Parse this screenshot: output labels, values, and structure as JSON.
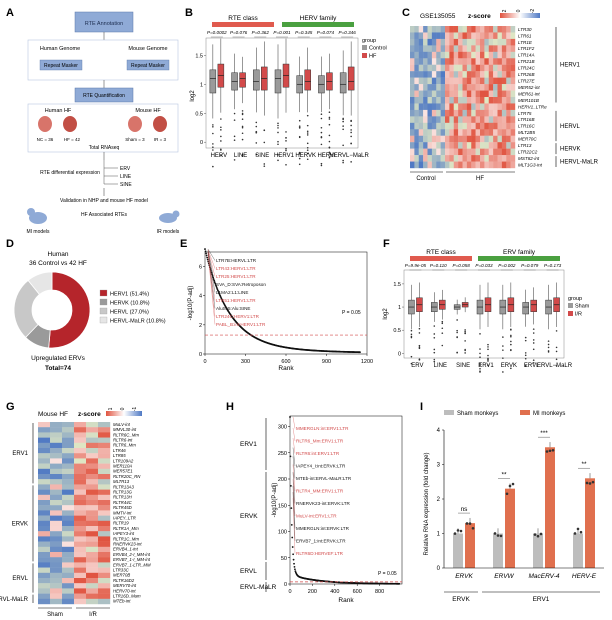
{
  "colors": {
    "control": "#9a9a9a",
    "hf": "#d24a4a",
    "classBar": "#e05a4e",
    "familyBar": "#4aa040",
    "heatRed": "#e0533f",
    "heatBlue": "#4f79c4",
    "flowBox": "#8faad6",
    "herv1": "#b5252b",
    "hervk": "#9a9a9a",
    "hervl": "#c8c8c8",
    "herlvmalr": "#e6e6e6",
    "sham": "#bdbdbd",
    "mi": "#e0704e"
  },
  "panels": {
    "A": {
      "letter": "A",
      "rte_annotation": "RTE Annotation",
      "human_genome": "Human Genome",
      "mouse_genome": "Mouse Genome",
      "repeat_masker": "Repeat Masker",
      "rte_quantification": "RTE Quantification",
      "human_hf": "Human HF",
      "mouse_hf": "Mouse HF",
      "nc": "NC = 36",
      "hf": "HF = 42",
      "sham": "Sham = 3",
      "ir": "IR = 3",
      "total_rnaseq": "Total RNAseq",
      "rte_de": "RTE differential expression",
      "erv": "ERV",
      "line": "LINE",
      "sine": "SINE",
      "validation": "Validation in NHP and mouse HF model",
      "hf_assoc": "HF Associated RTEs",
      "mi_models": "MI models",
      "ir_models": "IR models"
    },
    "B": {
      "letter": "B",
      "class_title": "RTE class",
      "family_title": "HERV family",
      "pvals": [
        "P=0.0002",
        "P=0.076",
        "P=0.362",
        "P=0.001",
        "P=0.345",
        "P=0.074",
        "P=0.346"
      ],
      "ylabel": "log2",
      "legend_title": "group",
      "legend": [
        "Control",
        "HF"
      ]
    },
    "C": {
      "letter": "C",
      "gse": "GSE135055",
      "zscore": "z-score",
      "ticks": [
        "2",
        "0",
        "-2"
      ],
      "genes": [
        "LTR30",
        "LTR61",
        "LTR1E",
        "LTR1F2",
        "LTR14A",
        "LTR21B",
        "LTR24C",
        "LTR26B",
        "LTR27E",
        "MER52-int",
        "MER61-int",
        "MER101B",
        "HERV1_LTRe",
        "LTR75",
        "LTR16B",
        "LTR16C",
        "MLT2B5",
        "MER70C",
        "LTR13",
        "LTR22C2",
        "MST82-int",
        "MLT1G3-int"
      ],
      "groups": [
        "HERV1",
        "HERVL",
        "HERVK",
        "HERVL-MaLR"
      ],
      "control": "Control",
      "hf": "HF"
    },
    "D": {
      "letter": "D",
      "title1": "Human",
      "title2": "36 Control vs 42 HF",
      "legend": [
        "HERV1 (51.4%)",
        "HERVK (10.8%)",
        "HERVL (27.0%)",
        "HERVL-MaLR (10.8%)"
      ],
      "caption": "Upregulated ERVs",
      "total": "Total=74"
    },
    "E": {
      "letter": "E",
      "ylabel": "-log10(P-adj)",
      "xlabel": "Rank",
      "xticks": [
        "0",
        "300",
        "600",
        "900",
        "1200"
      ],
      "yticks": [
        "0",
        "2",
        "4",
        "6"
      ],
      "pline": "P = 0.05",
      "labels": [
        "LTR7B:HERVL:LTR",
        "LTR43:HERV1:LTR",
        "LTR25:HERV1:LTR",
        "SVA_D:SVA:Retroposon",
        "L1MA2:L1:LINE",
        "LTR51:HERV1:LTR",
        "AluSc5:Alu:SINE",
        "LTR24C:HERV1:LTR",
        "PABL_B:int:HERV1:LTR"
      ]
    },
    "F": {
      "letter": "F",
      "class_title": "RTE class",
      "family_title": "ERV family",
      "pvals": [
        "P=9.9e-05",
        "P=0.110",
        "P=0.058",
        "P=0.033",
        "P=0.002",
        "P=0.079",
        "P=0.173"
      ],
      "ylabel": "log2",
      "legend_title": "group",
      "legend": [
        "Sham",
        "I/R"
      ],
      "categories": [
        "ERV",
        "LINE",
        "SINE",
        "ERV1",
        "ERVK",
        "ERVL",
        "ERVL−MaLR"
      ]
    },
    "G": {
      "letter": "G",
      "title": "Mouse HF",
      "zscore": "z-score",
      "ticks": [
        "1",
        "0",
        "-1"
      ],
      "genes": [
        "MuLV-int",
        "MMVL30-int",
        "RLTR6C_Mm",
        "RLTR6-int",
        "RLTR6_Mm",
        "LTR46",
        "LTR85",
        "LTR109A2",
        "MER110A",
        "MER57E1",
        "RLTR20C_RN",
        "MLTR13",
        "RLTR13A3",
        "RLTR13G",
        "RLTR13H",
        "RLTR44C",
        "RLTR45D",
        "MMTV-int",
        "IAPEY_LTR",
        "RLTR19",
        "RLTR1A_Mm",
        "IAPEY3-int",
        "RLTR1C_Mm",
        "RNERVK23-int",
        "ERVB4_1-int",
        "ERVB4_2-I_MM-int",
        "ERVB7_1-I_MM-int",
        "ERVB7_1-LTR_MM",
        "LTR33C",
        "MER70B",
        "RLTR16D2",
        "MERV70-int",
        "HERV70-int",
        "LTR16D_Mam",
        "MTEb-int"
      ],
      "groups": [
        "ERV1",
        "ERVK",
        "ERVL",
        "ERVL-MaLR"
      ],
      "sham": "Sham",
      "ir": "I/R"
    },
    "H": {
      "letter": "H",
      "ylabel": "-log10(P-adj)",
      "xlabel": "Rank",
      "xticks": [
        "0",
        "200",
        "400",
        "600",
        "800"
      ],
      "yticks": [
        "0",
        "50",
        "100",
        "150",
        "200",
        "250",
        "300"
      ],
      "pline": "P = 0.05",
      "labels": [
        "MMERGLN:int:ERV1:LTR",
        "RLTR6_Mm:ERV1:LTR",
        "RLTR6:int:ERV1:LTR",
        "IAPEY4_I:int:ERVK:LTR",
        "MTEb-int:ERVL-MaLR:LTR",
        "RLTR4_MM:ERV1:LTR",
        "RNERVK23-int:ERVK:LTR",
        "MuLV-int:ERV1:LTR",
        "MMERGLN:int:ERVK:LTR",
        "ERVB7_1:int:ERVK:LTR",
        "RLTR6D:HERVEF:LTR"
      ],
      "group_labels": [
        "ERV1",
        "ERVK",
        "ERVL",
        "ERVL-MaLR"
      ]
    },
    "I": {
      "letter": "I",
      "legend": [
        "Sham monkeys",
        "MI monkeys"
      ],
      "ylabel": "Relative RNA expression (fold change)",
      "genes": [
        "ERVK",
        "ERVW",
        "MacERV-4",
        "HERV-E"
      ],
      "signif": [
        "ns",
        "**",
        "***",
        "**"
      ],
      "groups": [
        "ERVK",
        "ERV1"
      ],
      "yticks": [
        "0",
        "1",
        "2",
        "3",
        "4"
      ]
    }
  },
  "chart_data": [
    {
      "panel": "B",
      "type": "box",
      "categories": [
        "HERV",
        "LINE",
        "SINE",
        "HERV1",
        "HERVK",
        "HERVL",
        "HERVL−MaLR"
      ],
      "series": [
        {
          "name": "Control",
          "median": [
            1.1,
            1.05,
            1.05,
            1.1,
            1.0,
            1.0,
            1.0
          ],
          "q1": [
            0.85,
            0.9,
            0.9,
            0.85,
            0.85,
            0.85,
            0.85
          ],
          "q3": [
            1.25,
            1.2,
            1.25,
            1.25,
            1.15,
            1.15,
            1.2
          ]
        },
        {
          "name": "HF",
          "median": [
            1.15,
            1.1,
            1.1,
            1.15,
            1.05,
            1.05,
            1.05
          ],
          "q1": [
            0.95,
            0.95,
            0.9,
            0.95,
            0.9,
            0.9,
            0.9
          ],
          "q3": [
            1.35,
            1.2,
            1.3,
            1.35,
            1.25,
            1.2,
            1.3
          ]
        }
      ],
      "ylim": [
        -0.1,
        1.8
      ]
    },
    {
      "panel": "D",
      "type": "pie",
      "labels": [
        "HERV1",
        "HERVK",
        "HERVL",
        "HERVL-MaLR"
      ],
      "values": [
        51.4,
        10.8,
        27.0,
        10.8
      ]
    },
    {
      "panel": "E",
      "type": "scatter",
      "xlim": [
        0,
        1200
      ],
      "ylim": [
        0,
        7
      ],
      "p_threshold": 1.3
    },
    {
      "panel": "F",
      "type": "box",
      "categories": [
        "ERV",
        "LINE",
        "SINE",
        "ERV1",
        "ERVK",
        "ERVL",
        "ERVL−MaLR"
      ],
      "series": [
        {
          "name": "Sham",
          "median": [
            1.0,
            1.0,
            1.0,
            1.0,
            1.0,
            1.0,
            1.0
          ],
          "q1": [
            0.85,
            0.9,
            0.95,
            0.85,
            0.85,
            0.85,
            0.85
          ],
          "q3": [
            1.15,
            1.1,
            1.05,
            1.15,
            1.15,
            1.1,
            1.15
          ]
        },
        {
          "name": "I/R",
          "median": [
            1.05,
            1.05,
            1.05,
            1.05,
            1.05,
            1.05,
            1.05
          ],
          "q1": [
            0.9,
            0.95,
            1.0,
            0.9,
            0.9,
            0.9,
            0.9
          ],
          "q3": [
            1.2,
            1.15,
            1.1,
            1.2,
            1.2,
            1.15,
            1.2
          ]
        }
      ],
      "ylim": [
        -0.1,
        1.8
      ]
    },
    {
      "panel": "H",
      "type": "scatter",
      "xlim": [
        0,
        1000
      ],
      "ylim": [
        0,
        320
      ],
      "p_threshold": 1.3
    },
    {
      "panel": "I",
      "type": "bar",
      "categories": [
        "ERVK",
        "ERVW",
        "MacERV-4",
        "HERV-E"
      ],
      "series": [
        {
          "name": "Sham monkeys",
          "values": [
            1.0,
            1.0,
            1.0,
            1.0
          ]
        },
        {
          "name": "MI monkeys",
          "values": [
            1.3,
            2.3,
            3.5,
            2.6
          ]
        }
      ],
      "ylim": [
        0,
        4
      ]
    }
  ]
}
